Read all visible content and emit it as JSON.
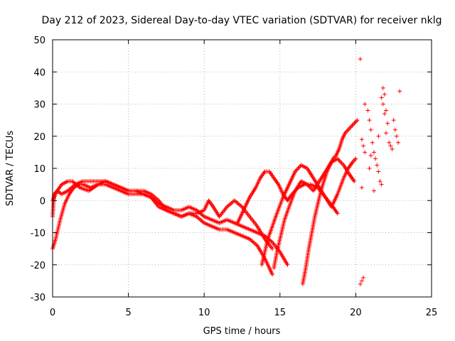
{
  "chart_data": {
    "type": "scatter",
    "title": "Day 212 of 2023, Sidereal Day-to-day VTEC variation (SDTVAR) for receiver nklg",
    "xlabel": "GPS time / hours",
    "ylabel": "SDTVAR / TECUs",
    "xlim": [
      0,
      25
    ],
    "ylim": [
      -30,
      50
    ],
    "xticks": [
      0,
      5,
      10,
      15,
      20,
      25
    ],
    "yticks": [
      -30,
      -20,
      -10,
      0,
      10,
      20,
      30,
      40,
      50
    ],
    "grid": true,
    "marker": "+",
    "color": "#ff0000",
    "series": [
      {
        "name": "track-1",
        "x": [
          0.0,
          0.2,
          0.5,
          0.8,
          1.1,
          1.4,
          1.7,
          2.0,
          2.5,
          3.0,
          3.5,
          4.0,
          4.5,
          5.0,
          5.5,
          6.0,
          6.5,
          7.0,
          7.5,
          8.0,
          8.5,
          9.0,
          9.5,
          10.0,
          10.5,
          11.0,
          11.5,
          12.0,
          12.5,
          13.0,
          13.5,
          14.0,
          14.3,
          14.5
        ],
        "y": [
          -15,
          -12,
          -6,
          -1,
          2,
          4,
          5,
          5,
          4,
          5,
          5,
          4,
          3,
          2,
          2,
          2,
          1,
          -2,
          -3,
          -4,
          -5,
          -4,
          -5,
          -7,
          -8,
          -9,
          -9,
          -10,
          -11,
          -12,
          -14,
          -18,
          -21,
          -23
        ]
      },
      {
        "name": "track-2",
        "x": [
          0.0,
          0.1,
          0.3,
          0.6,
          1.0,
          1.5,
          2.0,
          2.5,
          3.0,
          3.5,
          4.0,
          4.5,
          5.0,
          5.5,
          6.0,
          6.5,
          7.0,
          7.5,
          8.0,
          8.5,
          9.0,
          9.5,
          10.0,
          10.5,
          11.0,
          11.5,
          12.0,
          12.5,
          13.0,
          13.5,
          14.0,
          14.5,
          15.0,
          15.5
        ],
        "y": [
          -5,
          2,
          3,
          2,
          3,
          5,
          6,
          6,
          6,
          6,
          5,
          4,
          3,
          3,
          2,
          1,
          -1,
          -2,
          -3,
          -3,
          -2,
          -3,
          -5,
          -6,
          -7,
          -6,
          -7,
          -8,
          -9,
          -10,
          -11,
          -13,
          -16,
          -20
        ]
      },
      {
        "name": "track-3",
        "x": [
          0.0,
          0.3,
          0.6,
          1.0,
          1.3,
          1.8,
          2.4,
          3.0,
          3.5,
          4.0,
          4.5,
          5.0,
          5.5,
          6.0,
          6.5,
          7.0,
          7.5,
          8.0,
          8.5,
          9.0,
          9.5,
          10.0,
          10.3,
          10.6,
          11.0,
          11.5,
          12.0,
          12.5,
          13.0,
          13.5,
          14.0,
          14.5
        ],
        "y": [
          0,
          3,
          5,
          6,
          6,
          4,
          3,
          5,
          6,
          5,
          4,
          3,
          3,
          3,
          2,
          0,
          -3,
          -4,
          -5,
          -4,
          -4,
          -3,
          0,
          -2,
          -5,
          -2,
          0,
          -2,
          -5,
          -8,
          -12,
          -15
        ]
      },
      {
        "name": "track-4",
        "x": [
          12.2,
          12.6,
          13.0,
          13.4,
          13.7,
          14.0,
          14.3,
          14.6,
          14.9,
          15.2,
          15.5,
          15.8,
          16.2,
          16.6,
          17.0,
          17.5,
          18.0,
          18.5,
          18.8
        ],
        "y": [
          -7,
          -3,
          1,
          4,
          7,
          9,
          9,
          7,
          5,
          2,
          0,
          2,
          4,
          5,
          5,
          4,
          1,
          -2,
          -4
        ]
      },
      {
        "name": "track-5",
        "x": [
          13.8,
          14.0,
          14.2,
          14.5,
          14.8,
          15.2,
          15.6,
          16.0,
          16.4,
          16.8,
          17.2,
          17.6,
          18.0,
          18.4,
          18.8,
          19.2,
          19.5,
          19.8,
          20.0
        ],
        "y": [
          -20,
          -16,
          -12,
          -8,
          -4,
          1,
          5,
          9,
          11,
          10,
          7,
          4,
          1,
          -2,
          2,
          7,
          10,
          12,
          13
        ]
      },
      {
        "name": "track-6",
        "x": [
          14.6,
          14.8,
          15.0,
          15.3,
          15.6,
          16.0,
          16.4,
          16.8,
          17.2,
          17.6,
          18.0,
          18.4,
          18.8,
          19.2,
          19.6,
          19.9
        ],
        "y": [
          -21,
          -16,
          -12,
          -6,
          -2,
          3,
          6,
          5,
          3,
          6,
          9,
          12,
          13,
          11,
          8,
          6
        ]
      },
      {
        "name": "track-7",
        "x": [
          16.5,
          16.7,
          16.9,
          17.1,
          17.3,
          17.5,
          17.7,
          17.9,
          18.1,
          18.3,
          18.5,
          18.7,
          18.9,
          19.1,
          19.3,
          19.5,
          19.7,
          19.9,
          20.1
        ],
        "y": [
          -26,
          -21,
          -15,
          -10,
          -5,
          -1,
          3,
          6,
          9,
          11,
          13,
          14,
          16,
          19,
          21,
          22,
          23,
          24,
          25
        ]
      },
      {
        "name": "scatter-tail",
        "x": [
          20.3,
          20.4,
          20.5,
          20.6,
          20.5,
          20.3,
          20.4,
          20.6,
          20.8,
          20.9,
          21.0,
          21.1,
          21.2,
          21.0,
          20.9,
          21.3,
          21.4,
          21.5,
          21.6,
          21.7,
          21.8,
          21.9,
          22.0,
          22.1,
          22.2,
          21.7,
          21.8,
          21.9,
          22.0,
          22.5,
          22.6,
          22.7,
          22.8,
          22.9,
          21.5,
          22.3,
          22.4,
          21.2,
          20.4
        ],
        "y": [
          44,
          19,
          17,
          15,
          -24,
          -26,
          -25,
          30,
          28,
          25,
          22,
          18,
          15,
          14,
          10,
          13,
          11,
          9,
          6,
          5,
          35,
          33,
          28,
          24,
          18,
          32,
          30,
          27,
          21,
          25,
          22,
          20,
          18,
          34,
          20,
          17,
          16,
          3,
          4
        ]
      }
    ]
  }
}
